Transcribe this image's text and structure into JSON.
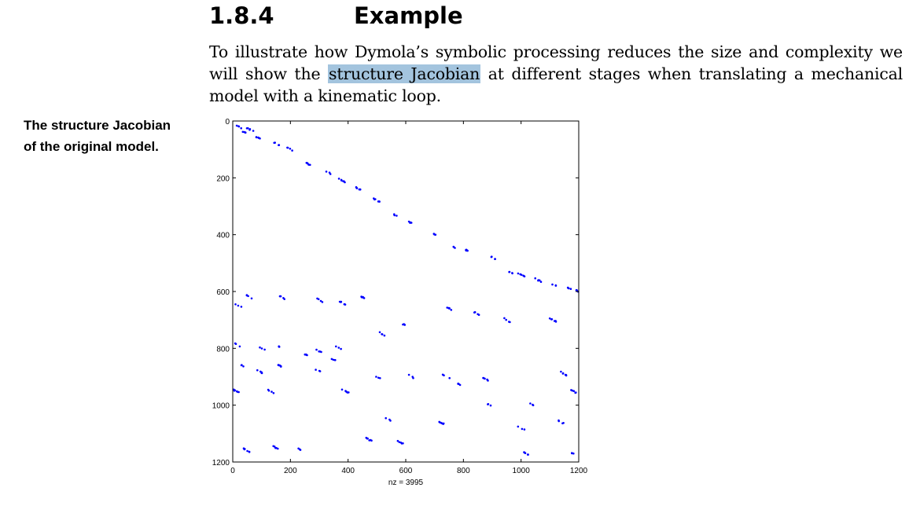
{
  "section": {
    "number": "1.8.4",
    "title": "Example"
  },
  "paragraph": {
    "before": "To illustrate how Dymola’s symbolic processing reduces the size and complexity we will show the ",
    "highlight": "structure Jacobian",
    "after": " at different stages when translating a mechanical model with a kinematic loop."
  },
  "caption": "The structure Jacobian\nof the original model.",
  "chart_data": {
    "type": "scatter",
    "title": "",
    "xlabel": "nz = 3995",
    "ylabel": "",
    "xlim": [
      0,
      1200
    ],
    "ylim": [
      1200,
      0
    ],
    "x_ticks": [
      "0",
      "200",
      "400",
      "600",
      "800",
      "1000",
      "1200"
    ],
    "y_ticks": [
      "0",
      "200",
      "400",
      "600",
      "800",
      "1000",
      "1200"
    ],
    "grid": false,
    "marker_color": "#0000ff",
    "point_groups": [
      [
        20,
        20
      ],
      [
        40,
        40
      ],
      [
        60,
        30
      ],
      [
        90,
        60
      ],
      [
        150,
        80
      ],
      [
        200,
        100
      ],
      [
        260,
        150
      ],
      [
        330,
        180
      ],
      [
        380,
        210
      ],
      [
        440,
        240
      ],
      [
        500,
        280
      ],
      [
        560,
        330
      ],
      [
        620,
        360
      ],
      [
        700,
        400
      ],
      [
        760,
        440
      ],
      [
        820,
        460
      ],
      [
        900,
        480
      ],
      [
        960,
        530
      ],
      [
        1000,
        540
      ],
      [
        1060,
        560
      ],
      [
        1120,
        580
      ],
      [
        1170,
        590
      ],
      [
        1200,
        600
      ],
      [
        20,
        650
      ],
      [
        60,
        620
      ],
      [
        170,
        620
      ],
      [
        300,
        630
      ],
      [
        380,
        640
      ],
      [
        450,
        620
      ],
      [
        520,
        750
      ],
      [
        600,
        720
      ],
      [
        750,
        660
      ],
      [
        850,
        680
      ],
      [
        950,
        700
      ],
      [
        1110,
        700
      ],
      [
        20,
        790
      ],
      [
        100,
        800
      ],
      [
        170,
        800
      ],
      [
        250,
        820
      ],
      [
        300,
        810
      ],
      [
        350,
        840
      ],
      [
        370,
        800
      ],
      [
        30,
        860
      ],
      [
        90,
        880
      ],
      [
        160,
        860
      ],
      [
        300,
        880
      ],
      [
        500,
        900
      ],
      [
        620,
        900
      ],
      [
        740,
        900
      ],
      [
        880,
        910
      ],
      [
        1150,
        890
      ],
      [
        10,
        950
      ],
      [
        130,
        950
      ],
      [
        390,
        950
      ],
      [
        790,
        930
      ],
      [
        890,
        1000
      ],
      [
        1040,
        1000
      ],
      [
        1180,
        950
      ],
      [
        540,
        1050
      ],
      [
        720,
        1060
      ],
      [
        1000,
        1080
      ],
      [
        1140,
        1060
      ],
      [
        50,
        1160
      ],
      [
        150,
        1150
      ],
      [
        240,
        1160
      ],
      [
        470,
        1120
      ],
      [
        580,
        1130
      ],
      [
        1020,
        1170
      ],
      [
        1180,
        1170
      ]
    ]
  }
}
